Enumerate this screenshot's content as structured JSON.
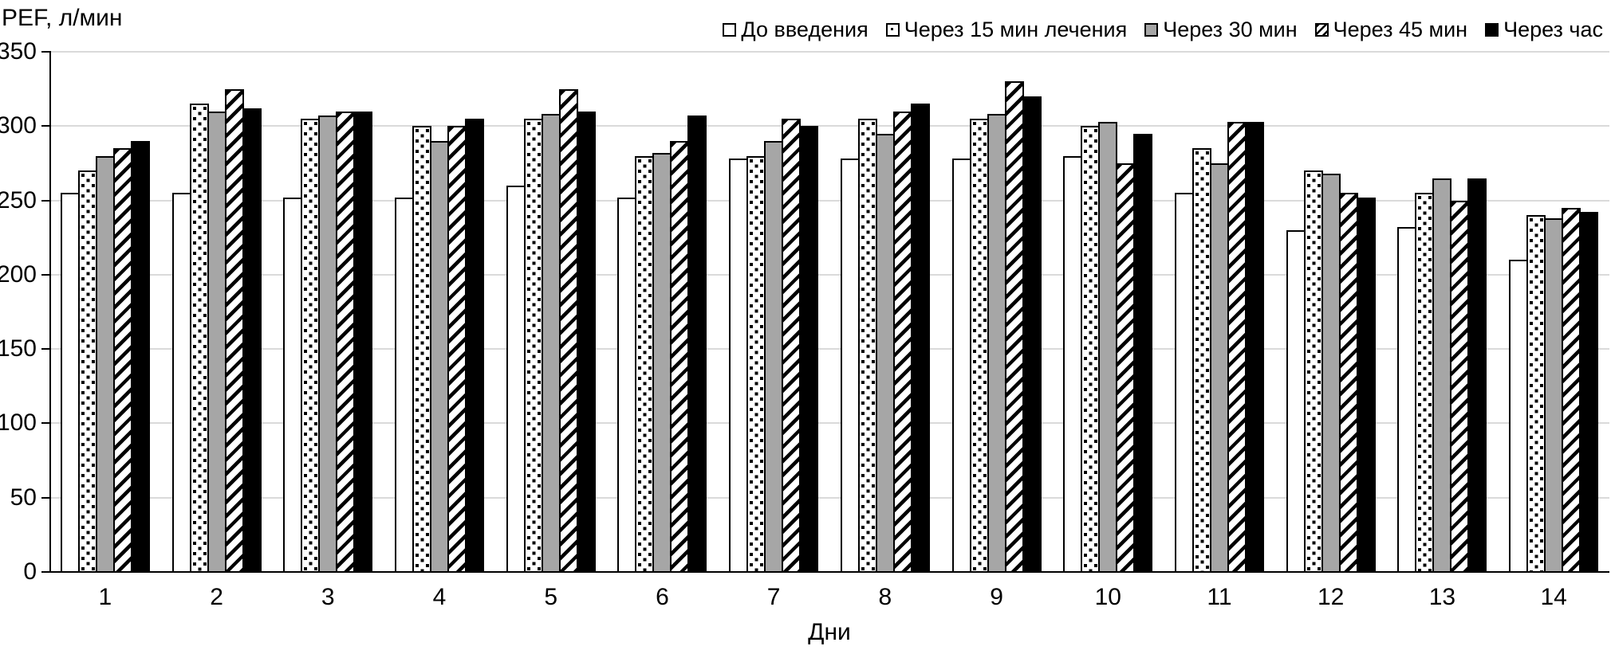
{
  "chart_data": {
    "type": "bar",
    "title": "",
    "ylabel": "PEF, л/мин",
    "xlabel": "Дни",
    "ylim": [
      0,
      350
    ],
    "ytick_step": 50,
    "yticks": [
      0,
      50,
      100,
      150,
      200,
      250,
      300,
      350
    ],
    "grid": true,
    "legend_position": "top-right",
    "categories": [
      "1",
      "2",
      "3",
      "4",
      "5",
      "6",
      "7",
      "8",
      "9",
      "10",
      "11",
      "12",
      "13",
      "14"
    ],
    "series": [
      {
        "name": "До введения",
        "pattern": "white",
        "values": [
          255,
          255,
          252,
          252,
          260,
          252,
          278,
          278,
          278,
          280,
          255,
          230,
          232,
          210
        ]
      },
      {
        "name": "Через 15 мин лечения",
        "pattern": "dots",
        "values": [
          270,
          315,
          305,
          300,
          305,
          280,
          280,
          305,
          305,
          300,
          285,
          270,
          255,
          240
        ]
      },
      {
        "name": "Через 30 мин",
        "pattern": "gray",
        "values": [
          280,
          310,
          307,
          290,
          308,
          282,
          290,
          295,
          308,
          303,
          275,
          268,
          265,
          238
        ]
      },
      {
        "name": "Через 45 мин",
        "pattern": "diagonal",
        "values": [
          285,
          325,
          310,
          300,
          325,
          290,
          305,
          310,
          330,
          275,
          303,
          255,
          250,
          245
        ]
      },
      {
        "name": "Через час",
        "pattern": "black",
        "values": [
          290,
          312,
          310,
          305,
          310,
          307,
          300,
          315,
          320,
          295,
          303,
          252,
          265,
          242
        ]
      }
    ],
    "colors": {
      "gray_fill": "#a6a6a6",
      "black_fill": "#000000",
      "bar_border": "#000000",
      "gridline": "#dadada",
      "axis": "#000000",
      "background": "#ffffff"
    }
  }
}
